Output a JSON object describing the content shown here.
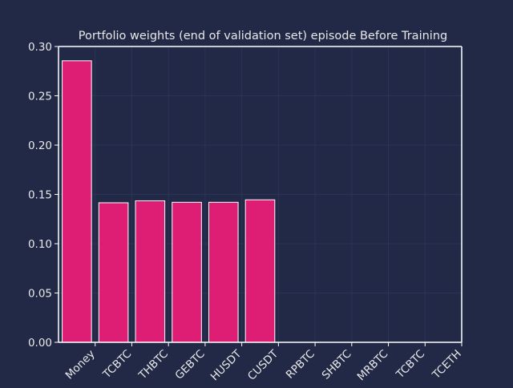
{
  "colors": {
    "background": "#212946",
    "grid": "#2A3459",
    "bar_fill": "#DD1E74",
    "bar_edge": "#FFFFFF",
    "text": "#E8E8E8",
    "axis": "#FFFFFF"
  },
  "chart_data": {
    "type": "bar",
    "title": "Portfolio weights (end of validation set) episode Before Training",
    "xlabel": "",
    "ylabel": "",
    "ylim": [
      0,
      0.3
    ],
    "yticks": [
      "0.00",
      "0.05",
      "0.10",
      "0.15",
      "0.20",
      "0.25",
      "0.30"
    ],
    "grid": true,
    "categories": [
      "Money",
      "BTCBTC",
      "ETHBTC",
      "DOGEBTC",
      "ETHUSDT",
      "BTCUSDT",
      "XRPBTC",
      "DASHBTC",
      "XMRBTC",
      "LTCBTC",
      "BTCETH"
    ],
    "tick_labels_visible": [
      "Money",
      "TCBTC",
      "THBTC",
      "GEBTC",
      "HUSDT",
      "CUSDT",
      "RPBTC",
      "SHBTC",
      "MRBTC",
      "TCBTC",
      "TCETH"
    ],
    "values": [
      0.2855,
      0.1415,
      0.1435,
      0.142,
      0.142,
      0.1445,
      0,
      0,
      0,
      0,
      0
    ]
  }
}
